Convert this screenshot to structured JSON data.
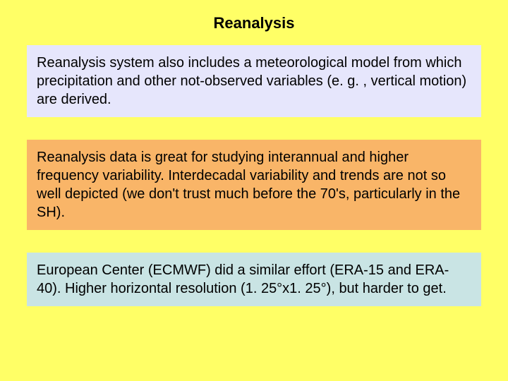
{
  "slide": {
    "background_color": "#ffff66",
    "title": "Reanalysis",
    "title_color": "#000000",
    "title_fontsize": 22,
    "boxes": [
      {
        "text": "Reanalysis system also includes a meteorological model from which precipitation and other not-observed variables (e. g. , vertical motion) are derived.",
        "background_color": "#e6e6fc",
        "text_color": "#000000"
      },
      {
        "text": "Reanalysis data is great for studying interannual and higher frequency variability. Interdecadal variability and trends are not so well depicted (we don't trust much before the 70's, particularly in the SH).",
        "background_color": "#f9b568",
        "text_color": "#000000"
      },
      {
        "text": "European Center (ECMWF) did a similar effort (ERA-15 and ERA-40). Higher horizontal resolution (1. 25°x1. 25°), but harder to get.",
        "background_color": "#c9e4e4",
        "text_color": "#000000"
      }
    ],
    "body_fontsize": 20
  }
}
